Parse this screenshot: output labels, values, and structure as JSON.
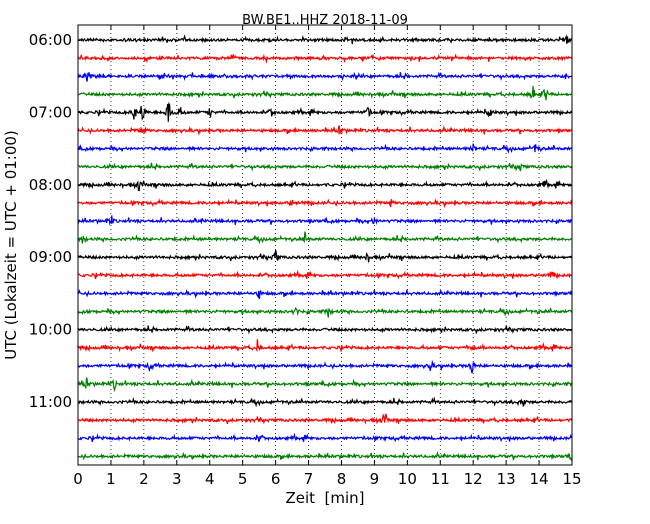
{
  "chart_data": {
    "type": "line",
    "title": "BW.BE1..HHZ 2018-11-09",
    "xlabel": "Zeit  [min]",
    "ylabel": "UTC (Lokalzeit = UTC + 01:00)",
    "xlim": [
      0,
      15
    ],
    "x_ticks": [
      "0",
      "1",
      "2",
      "3",
      "4",
      "5",
      "6",
      "7",
      "8",
      "9",
      "10",
      "11",
      "12",
      "13",
      "14",
      "15"
    ],
    "y_tick_labels": [
      {
        "label": "06:00",
        "row": 0
      },
      {
        "label": "07:00",
        "row": 4
      },
      {
        "label": "08:00",
        "row": 8
      },
      {
        "label": "09:00",
        "row": 12
      },
      {
        "label": "10:00",
        "row": 16
      },
      {
        "label": "11:00",
        "row": 20
      }
    ],
    "grid": "vertical dotted",
    "row_start_utc": "06:00",
    "row_duration_min": 15,
    "row_count": 24,
    "colors": [
      "#000000",
      "#ff0000",
      "#0000ff",
      "#008000"
    ],
    "trace_events": [
      {
        "row": 0,
        "events": [
          [
            14.85,
            0.25
          ]
        ]
      },
      {
        "row": 1,
        "events": []
      },
      {
        "row": 2,
        "events": [
          [
            0.3,
            0.5
          ],
          [
            14.8,
            0.2
          ]
        ]
      },
      {
        "row": 3,
        "events": [
          [
            13.8,
            0.55
          ],
          [
            14.2,
            0.45
          ]
        ]
      },
      {
        "row": 4,
        "events": [
          [
            1.7,
            0.5
          ],
          [
            1.95,
            0.7
          ],
          [
            2.75,
            0.9
          ],
          [
            3.1,
            0.4
          ],
          [
            4.0,
            0.3
          ],
          [
            5.9,
            0.3
          ],
          [
            8.8,
            0.35
          ],
          [
            12.5,
            0.3
          ]
        ]
      },
      {
        "row": 5,
        "events": [
          [
            1.95,
            0.4
          ],
          [
            7.95,
            0.3
          ]
        ]
      },
      {
        "row": 6,
        "events": [
          [
            12.0,
            0.3
          ],
          [
            13.9,
            0.3
          ]
        ]
      },
      {
        "row": 7,
        "events": [
          [
            13.4,
            0.3
          ]
        ]
      },
      {
        "row": 8,
        "events": [
          [
            1.85,
            0.35
          ],
          [
            14.15,
            0.35
          ]
        ]
      },
      {
        "row": 9,
        "events": [
          [
            6.5,
            0.25
          ],
          [
            9.5,
            0.2
          ]
        ]
      },
      {
        "row": 10,
        "events": [
          [
            1.0,
            0.3
          ],
          [
            9.0,
            0.25
          ]
        ]
      },
      {
        "row": 11,
        "events": [
          [
            0.15,
            0.25
          ],
          [
            6.9,
            0.3
          ]
        ]
      },
      {
        "row": 12,
        "events": [
          [
            6.0,
            0.35
          ],
          [
            8.8,
            0.3
          ]
        ]
      },
      {
        "row": 13,
        "events": [
          [
            14.4,
            0.25
          ]
        ]
      },
      {
        "row": 14,
        "events": [
          [
            5.5,
            0.3
          ]
        ]
      },
      {
        "row": 15,
        "events": [
          [
            6.6,
            0.3
          ],
          [
            7.6,
            0.3
          ]
        ]
      },
      {
        "row": 16,
        "events": []
      },
      {
        "row": 17,
        "events": [
          [
            5.45,
            0.45
          ],
          [
            12.0,
            0.3
          ]
        ]
      },
      {
        "row": 18,
        "events": [
          [
            2.2,
            0.3
          ],
          [
            10.7,
            0.3
          ],
          [
            11.95,
            0.5
          ]
        ]
      },
      {
        "row": 19,
        "events": [
          [
            0.25,
            0.35
          ],
          [
            1.1,
            0.3
          ]
        ]
      },
      {
        "row": 20,
        "events": [
          [
            13.5,
            0.3
          ]
        ]
      },
      {
        "row": 21,
        "events": [
          [
            9.3,
            0.5
          ]
        ]
      },
      {
        "row": 22,
        "events": [
          [
            5.5,
            0.2
          ]
        ]
      },
      {
        "row": 23,
        "events": [
          [
            15.0,
            0.25
          ]
        ]
      }
    ]
  }
}
